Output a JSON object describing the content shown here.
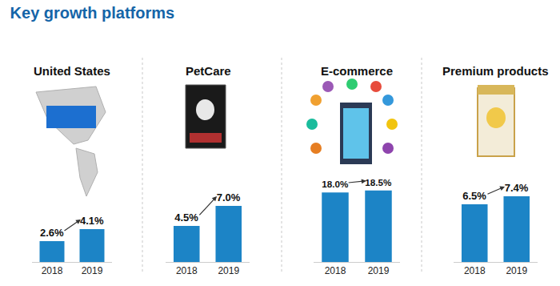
{
  "title": "Key growth platforms",
  "chart_data": [
    {
      "type": "bar",
      "title": "United States",
      "categories": [
        "2018",
        "2019"
      ],
      "values": [
        2.6,
        4.1
      ],
      "value_labels": [
        "2.6%",
        "4.1%"
      ],
      "data_labels": true,
      "color": "#1c84c6",
      "ylim": [
        0,
        13.3
      ],
      "grid": false,
      "tick_labels": "x"
    },
    {
      "type": "bar",
      "title": "PetCare",
      "categories": [
        "2018",
        "2019"
      ],
      "values": [
        4.5,
        7.0
      ],
      "value_labels": [
        "4.5%",
        "7.0%"
      ],
      "data_labels": true,
      "color": "#1c84c6",
      "ylim": [
        0,
        13.3
      ],
      "grid": false,
      "tick_labels": "x"
    },
    {
      "type": "bar",
      "title": "E-commerce",
      "categories": [
        "2018",
        "2019"
      ],
      "values": [
        18.0,
        18.5
      ],
      "value_labels": [
        "18.0%",
        "18.5%"
      ],
      "data_labels": true,
      "color": "#1c84c6",
      "ylim": [
        0,
        27.6
      ],
      "grid": false,
      "tick_labels": "x"
    },
    {
      "type": "bar",
      "title": "Premium products",
      "categories": [
        "2018",
        "2019"
      ],
      "values": [
        6.5,
        7.4
      ],
      "value_labels": [
        "6.5%",
        "7.4%"
      ],
      "data_labels": true,
      "color": "#1c84c6",
      "ylim": [
        0,
        12.0
      ],
      "grid": false,
      "tick_labels": "x"
    }
  ]
}
